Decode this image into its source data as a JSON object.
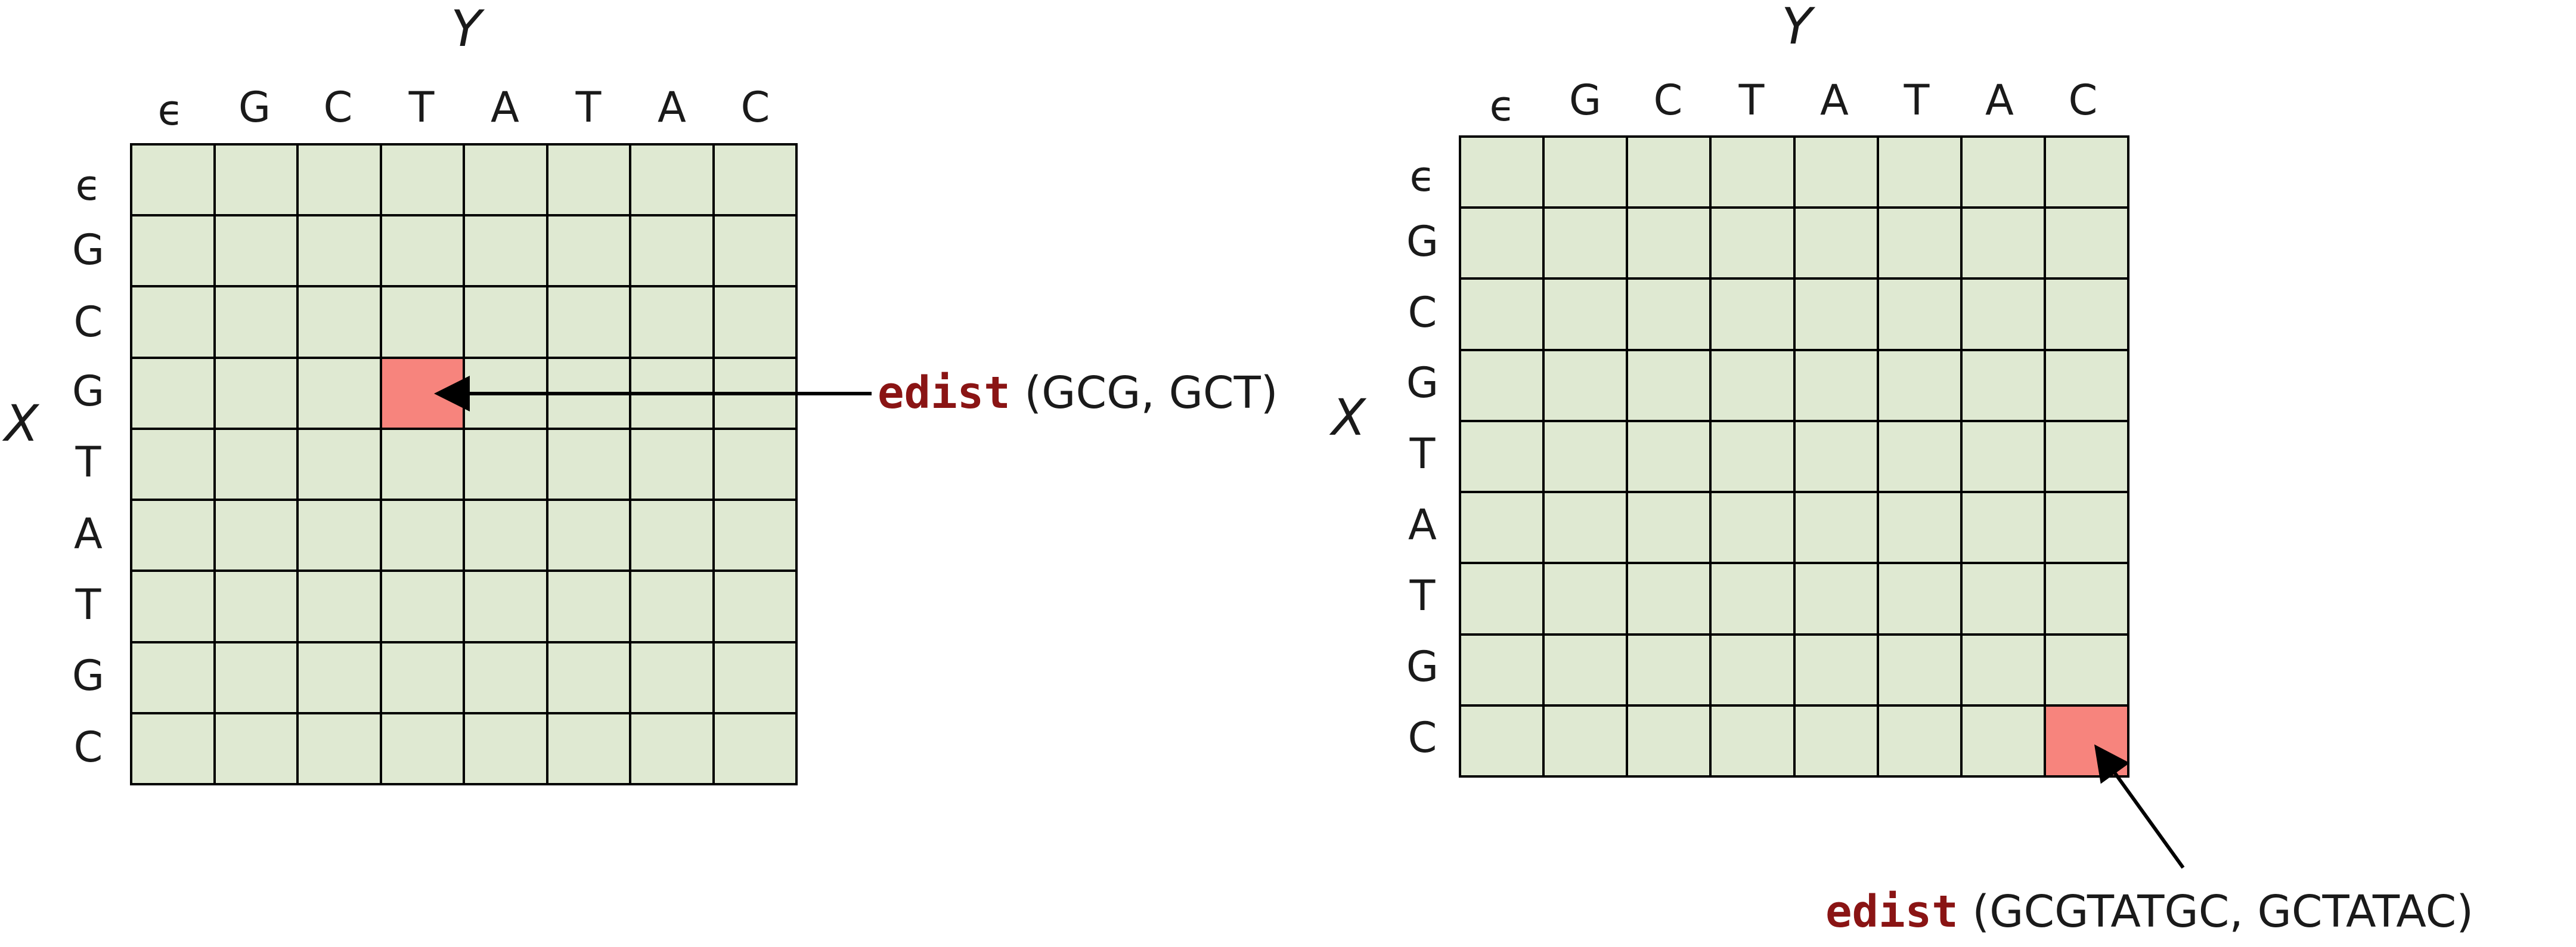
{
  "colors": {
    "cell": "#dfe9d2",
    "highlight": "#f7847d",
    "keyword": "#8a1414",
    "grid": "#000000"
  },
  "left": {
    "y_label": "Y",
    "x_label": "X",
    "columns": [
      "ϵ",
      "G",
      "C",
      "T",
      "A",
      "T",
      "A",
      "C"
    ],
    "rows": [
      "ϵ",
      "G",
      "C",
      "G",
      "T",
      "A",
      "T",
      "G",
      "C"
    ],
    "highlight": {
      "row": 3,
      "col": 3
    },
    "annotation": {
      "fn": "edist",
      "args": "(GCG, GCT)"
    }
  },
  "right": {
    "y_label": "Y",
    "x_label": "X",
    "columns": [
      "ϵ",
      "G",
      "C",
      "T",
      "A",
      "T",
      "A",
      "C"
    ],
    "rows": [
      "ϵ",
      "G",
      "C",
      "G",
      "T",
      "A",
      "T",
      "G",
      "C"
    ],
    "highlight": {
      "row": 8,
      "col": 7
    },
    "annotation": {
      "fn": "edist",
      "args": "(GCGTATGC, GCTATAC)"
    }
  }
}
